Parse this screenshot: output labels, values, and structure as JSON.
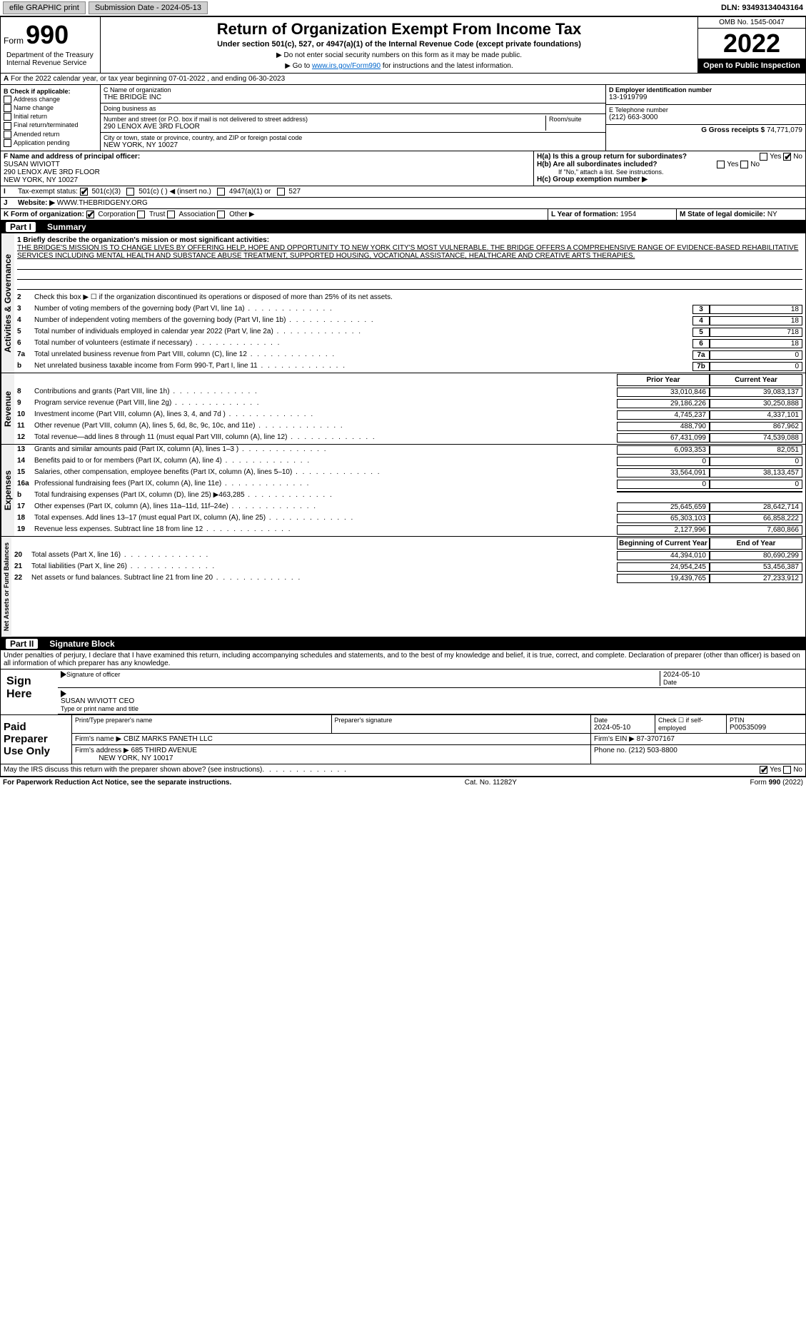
{
  "topbar": {
    "efile": "efile GRAPHIC print",
    "submission": "Submission Date - 2024-05-13",
    "dln": "DLN: 93493134043164"
  },
  "header": {
    "form_label": "Form",
    "form_number": "990",
    "title": "Return of Organization Exempt From Income Tax",
    "subtitle": "Under section 501(c), 527, or 4947(a)(1) of the Internal Revenue Code (except private foundations)",
    "note1": "▶ Do not enter social security numbers on this form as it may be made public.",
    "note2_pre": "▶ Go to ",
    "note2_link": "www.irs.gov/Form990",
    "note2_post": " for instructions and the latest information.",
    "omb": "OMB No. 1545-0047",
    "year": "2022",
    "open": "Open to Public Inspection",
    "dept": "Department of the Treasury Internal Revenue Service"
  },
  "row_a": "For the 2022 calendar year, or tax year beginning 07-01-2022   , and ending 06-30-2023",
  "box_b": {
    "label": "B Check if applicable:",
    "items": [
      "Address change",
      "Name change",
      "Initial return",
      "Final return/terminated",
      "Amended return",
      "Application pending"
    ]
  },
  "box_c": {
    "name_label": "C Name of organization",
    "name": "THE BRIDGE INC",
    "dba_label": "Doing business as",
    "dba": "",
    "addr_label": "Number and street (or P.O. box if mail is not delivered to street address)",
    "room_label": "Room/suite",
    "addr": "290 LENOX AVE 3RD FLOOR",
    "city_label": "City or town, state or province, country, and ZIP or foreign postal code",
    "city": "NEW YORK, NY  10027"
  },
  "box_d": {
    "label": "D Employer identification number",
    "val": "13-1919799"
  },
  "box_e": {
    "label": "E Telephone number",
    "val": "(212) 663-3000"
  },
  "box_g": {
    "label": "G Gross receipts $",
    "val": "74,771,079"
  },
  "box_f": {
    "label": "F  Name and address of principal officer:",
    "name": "SUSAN WIVIOTT",
    "addr1": "290 LENOX AVE 3RD FLOOR",
    "addr2": "NEW YORK, NY  10027"
  },
  "box_h": {
    "a_label": "H(a)  Is this a group return for subordinates?",
    "b_label": "H(b)  Are all subordinates included?",
    "b_note": "If \"No,\" attach a list. See instructions.",
    "c_label": "H(c)  Group exemption number ▶",
    "yes": "Yes",
    "no": "No"
  },
  "box_i": {
    "label": "Tax-exempt status:",
    "opts": [
      "501(c)(3)",
      "501(c) (  ) ◀ (insert no.)",
      "4947(a)(1) or",
      "527"
    ]
  },
  "box_j": {
    "label": "Website: ▶",
    "val": "WWW.THEBRIDGENY.ORG"
  },
  "box_k": {
    "label": "K Form of organization:",
    "opts": [
      "Corporation",
      "Trust",
      "Association",
      "Other ▶"
    ]
  },
  "box_l": {
    "label": "L Year of formation:",
    "val": "1954"
  },
  "box_m": {
    "label": "M State of legal domicile:",
    "val": "NY"
  },
  "part1": {
    "num": "Part I",
    "title": "Summary"
  },
  "mission": {
    "q": "1  Briefly describe the organization's mission or most significant activities:",
    "text": "THE BRIDGE'S MISSION IS TO CHANGE LIVES BY OFFERING HELP, HOPE AND OPPORTUNITY TO NEW YORK CITY'S MOST VULNERABLE. THE BRIDGE OFFERS A COMPREHENSIVE RANGE OF EVIDENCE-BASED REHABILITATIVE SERVICES INCLUDING MENTAL HEALTH AND SUBSTANCE ABUSE TREATMENT, SUPPORTED HOUSING, VOCATIONAL ASSISTANCE, HEALTHCARE AND CREATIVE ARTS THERAPIES."
  },
  "gov_lines": [
    {
      "n": "2",
      "t": "Check this box ▶ ☐ if the organization discontinued its operations or disposed of more than 25% of its net assets."
    },
    {
      "n": "3",
      "t": "Number of voting members of the governing body (Part VI, line 1a)",
      "box": "3",
      "v": "18"
    },
    {
      "n": "4",
      "t": "Number of independent voting members of the governing body (Part VI, line 1b)",
      "box": "4",
      "v": "18"
    },
    {
      "n": "5",
      "t": "Total number of individuals employed in calendar year 2022 (Part V, line 2a)",
      "box": "5",
      "v": "718"
    },
    {
      "n": "6",
      "t": "Total number of volunteers (estimate if necessary)",
      "box": "6",
      "v": "18"
    },
    {
      "n": "7a",
      "t": "Total unrelated business revenue from Part VIII, column (C), line 12",
      "box": "7a",
      "v": "0"
    },
    {
      "n": "b",
      "t": "Net unrelated business taxable income from Form 990-T, Part I, line 11",
      "box": "7b",
      "v": "0"
    }
  ],
  "col_hdrs": {
    "prior": "Prior Year",
    "current": "Current Year"
  },
  "revenue": [
    {
      "n": "8",
      "t": "Contributions and grants (Part VIII, line 1h)",
      "p": "33,010,846",
      "c": "39,083,137"
    },
    {
      "n": "9",
      "t": "Program service revenue (Part VIII, line 2g)",
      "p": "29,186,226",
      "c": "30,250,888"
    },
    {
      "n": "10",
      "t": "Investment income (Part VIII, column (A), lines 3, 4, and 7d )",
      "p": "4,745,237",
      "c": "4,337,101"
    },
    {
      "n": "11",
      "t": "Other revenue (Part VIII, column (A), lines 5, 6d, 8c, 9c, 10c, and 11e)",
      "p": "488,790",
      "c": "867,962"
    },
    {
      "n": "12",
      "t": "Total revenue—add lines 8 through 11 (must equal Part VIII, column (A), line 12)",
      "p": "67,431,099",
      "c": "74,539,088"
    }
  ],
  "expenses": [
    {
      "n": "13",
      "t": "Grants and similar amounts paid (Part IX, column (A), lines 1–3 )",
      "p": "6,093,353",
      "c": "82,051"
    },
    {
      "n": "14",
      "t": "Benefits paid to or for members (Part IX, column (A), line 4)",
      "p": "0",
      "c": "0"
    },
    {
      "n": "15",
      "t": "Salaries, other compensation, employee benefits (Part IX, column (A), lines 5–10)",
      "p": "33,564,091",
      "c": "38,133,457"
    },
    {
      "n": "16a",
      "t": "Professional fundraising fees (Part IX, column (A), line 11e)",
      "p": "0",
      "c": "0"
    },
    {
      "n": "b",
      "t": "Total fundraising expenses (Part IX, column (D), line 25) ▶463,285",
      "p": "",
      "c": ""
    },
    {
      "n": "17",
      "t": "Other expenses (Part IX, column (A), lines 11a–11d, 11f–24e)",
      "p": "25,645,659",
      "c": "28,642,714"
    },
    {
      "n": "18",
      "t": "Total expenses. Add lines 13–17 (must equal Part IX, column (A), line 25)",
      "p": "65,303,103",
      "c": "66,858,222"
    },
    {
      "n": "19",
      "t": "Revenue less expenses. Subtract line 18 from line 12",
      "p": "2,127,996",
      "c": "7,680,866"
    }
  ],
  "net_hdrs": {
    "beg": "Beginning of Current Year",
    "end": "End of Year"
  },
  "netassets": [
    {
      "n": "20",
      "t": "Total assets (Part X, line 16)",
      "p": "44,394,010",
      "c": "80,690,299"
    },
    {
      "n": "21",
      "t": "Total liabilities (Part X, line 26)",
      "p": "24,954,245",
      "c": "53,456,387"
    },
    {
      "n": "22",
      "t": "Net assets or fund balances. Subtract line 21 from line 20",
      "p": "19,439,765",
      "c": "27,233,912"
    }
  ],
  "vtabs": {
    "gov": "Activities & Governance",
    "rev": "Revenue",
    "exp": "Expenses",
    "net": "Net Assets or Fund Balances"
  },
  "part2": {
    "num": "Part II",
    "title": "Signature Block"
  },
  "penalties": "Under penalties of perjury, I declare that I have examined this return, including accompanying schedules and statements, and to the best of my knowledge and belief, it is true, correct, and complete. Declaration of preparer (other than officer) is based on all information of which preparer has any knowledge.",
  "sign": {
    "here": "Sign Here",
    "sig_officer": "Signature of officer",
    "date": "Date",
    "date_val": "2024-05-10",
    "name": "SUSAN WIVIOTT CEO",
    "name_label": "Type or print name and title"
  },
  "paid": {
    "title": "Paid Preparer Use Only",
    "prep_name_label": "Print/Type preparer's name",
    "prep_sig_label": "Preparer's signature",
    "date_label": "Date",
    "date_val": "2024-05-10",
    "self_label": "Check ☐ if self-employed",
    "ptin_label": "PTIN",
    "ptin": "P00535099",
    "firm_name_label": "Firm's name    ▶",
    "firm_name": "CBIZ MARKS PANETH LLC",
    "firm_ein_label": "Firm's EIN ▶",
    "firm_ein": "87-3707167",
    "firm_addr_label": "Firm's address ▶",
    "firm_addr1": "685 THIRD AVENUE",
    "firm_addr2": "NEW YORK, NY  10017",
    "phone_label": "Phone no.",
    "phone": "(212) 503-8800"
  },
  "may_irs": "May the IRS discuss this return with the preparer shown above? (see instructions)",
  "footer": {
    "left": "For Paperwork Reduction Act Notice, see the separate instructions.",
    "mid": "Cat. No. 11282Y",
    "right": "Form 990 (2022)"
  },
  "colors": {
    "accent": "#0066cc",
    "bg": "#ffffff"
  }
}
